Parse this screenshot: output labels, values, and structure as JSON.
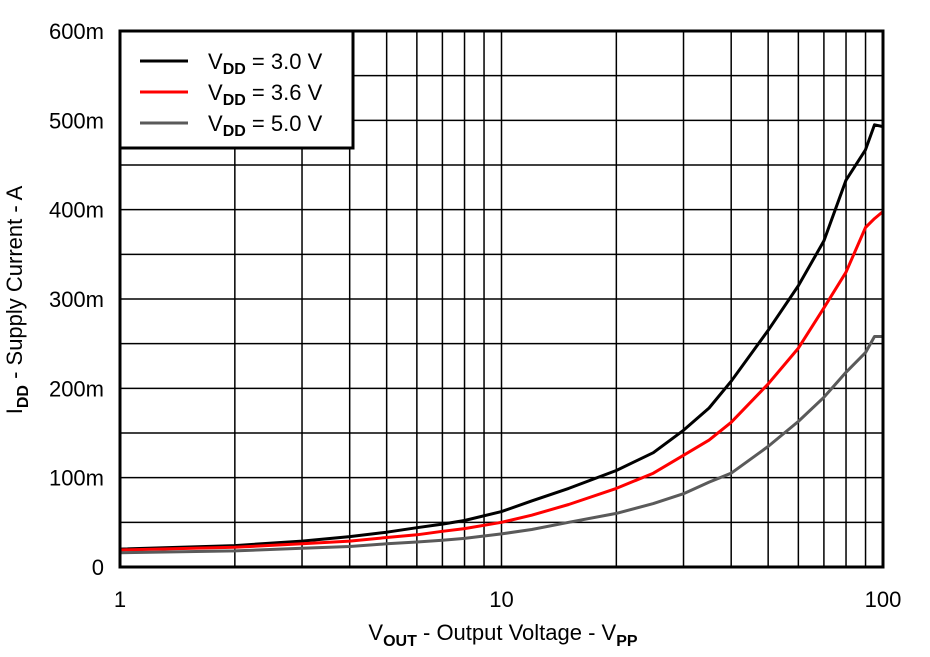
{
  "chart_data": {
    "type": "line",
    "title": "",
    "xlabel": "V_OUT - Output Voltage - V_PP",
    "xlabel_parts": {
      "main": "V",
      "sub": "OUT",
      "rest": " - Output Voltage - V",
      "sub2": "PP"
    },
    "ylabel": "I_DD - Supply Current - A",
    "ylabel_parts": {
      "main": "I",
      "sub": "DD",
      "rest": " - Supply Current - A"
    },
    "xscale": "log",
    "xlim": [
      1,
      100
    ],
    "ylim": [
      0,
      0.6
    ],
    "x_ticks": [
      "1",
      "10",
      "100"
    ],
    "y_ticks": [
      "0",
      "100m",
      "200m",
      "300m",
      "400m",
      "500m",
      "600m"
    ],
    "grid": true,
    "legend_position": "upper left",
    "x": [
      1,
      2,
      3,
      4,
      5,
      6,
      7,
      8,
      10,
      12,
      15,
      20,
      25,
      30,
      35,
      40,
      50,
      60,
      70,
      80,
      90,
      95,
      100
    ],
    "series": [
      {
        "name": "VDD = 3.0 V",
        "label_main": "V",
        "label_sub": "DD",
        "label_rest": " = 3.0 V",
        "color": "#000000",
        "values": [
          0.02,
          0.024,
          0.029,
          0.034,
          0.039,
          0.044,
          0.048,
          0.052,
          0.062,
          0.074,
          0.088,
          0.108,
          0.128,
          0.153,
          0.178,
          0.208,
          0.265,
          0.315,
          0.365,
          0.433,
          0.467,
          0.495,
          0.493
        ]
      },
      {
        "name": "VDD = 3.6 V",
        "label_main": "V",
        "label_sub": "DD",
        "label_rest": " = 3.6 V",
        "color": "#ff0000",
        "values": [
          0.019,
          0.022,
          0.026,
          0.029,
          0.033,
          0.036,
          0.04,
          0.043,
          0.05,
          0.058,
          0.07,
          0.088,
          0.105,
          0.125,
          0.142,
          0.162,
          0.205,
          0.245,
          0.29,
          0.33,
          0.38,
          0.39,
          0.398
        ]
      },
      {
        "name": "VDD = 5.0 V",
        "label_main": "V",
        "label_sub": "DD",
        "label_rest": " = 5.0 V",
        "color": "#5a5a5a",
        "values": [
          0.016,
          0.018,
          0.021,
          0.023,
          0.026,
          0.028,
          0.03,
          0.032,
          0.037,
          0.042,
          0.05,
          0.06,
          0.071,
          0.082,
          0.095,
          0.105,
          0.135,
          0.163,
          0.19,
          0.218,
          0.24,
          0.258,
          0.258
        ]
      }
    ]
  }
}
